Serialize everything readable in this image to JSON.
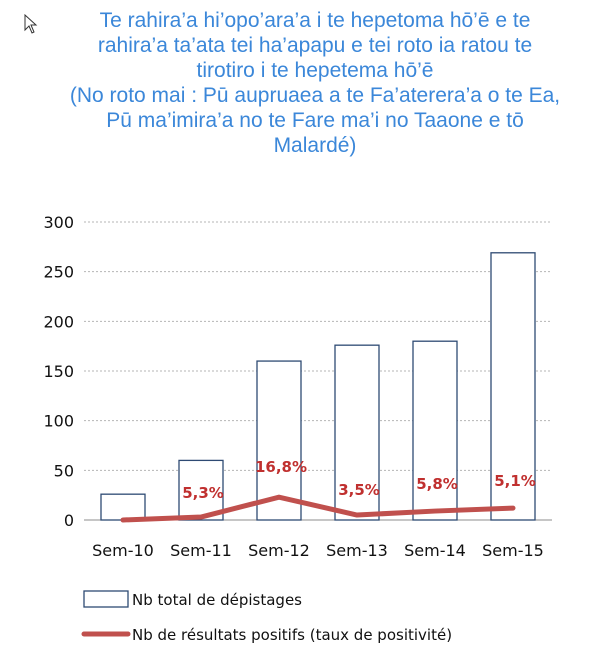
{
  "title": {
    "lines": [
      "Te rahira’a hi’opo’ara’a i te hepetoma hō’ē e te",
      "rahira’a ta’ata tei ha’apapu e tei roto ia ratou te",
      "tirotiro i te hepetema hō’ē",
      "(No roto mai : Pū aupruaea a te Fa’aterera’a o te Ea,",
      "Pū ma’imira’a no te Fare ma’i no Taaone e tō",
      "Malardé)"
    ]
  },
  "chart_data": {
    "type": "bar",
    "categories": [
      "Sem-10",
      "Sem-11",
      "Sem-12",
      "Sem-13",
      "Sem-14",
      "Sem-15"
    ],
    "ylim": [
      0,
      300
    ],
    "yticks": [
      0,
      50,
      100,
      150,
      200,
      250,
      300
    ],
    "grid": true,
    "legend_position": "bottom",
    "series": [
      {
        "name": "Nb total de dépistages",
        "kind": "bar",
        "values": [
          26,
          60,
          160,
          176,
          180,
          269
        ],
        "fill": "#ffffff",
        "stroke": "#2e4a73"
      },
      {
        "name": "Nb de résultats positifs (taux de positivité)",
        "kind": "line",
        "values": [
          0,
          3,
          23,
          5,
          9,
          12
        ],
        "labels": [
          "",
          "5,3%",
          "16,8%",
          "3,5%",
          "5,8%",
          "5,1%"
        ],
        "color": "#c0504d"
      }
    ]
  }
}
